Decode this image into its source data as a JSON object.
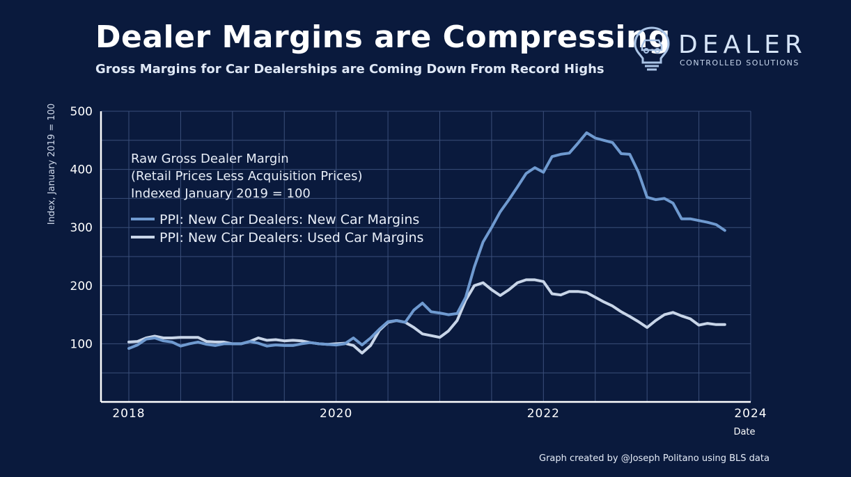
{
  "header": {
    "title": "Dealer Margins are Compressing",
    "subtitle": "Gross Margins for Car Dealerships are Coming Down From Record Highs"
  },
  "brand": {
    "name": "DEALER",
    "tagline": "CONTROLLED SOLUTIONS",
    "icon": "lightbulb-car-icon",
    "color": "#aac4e6"
  },
  "footer": {
    "credit": "Graph created by @Joseph Politano using BLS data"
  },
  "chart_data": {
    "type": "line",
    "xlabel": "Date",
    "ylabel": "Index, January 2019 = 100",
    "xlim": [
      2018,
      2024
    ],
    "ylim": [
      0,
      500
    ],
    "x_ticks": [
      "2018",
      "2020",
      "2022",
      "2024"
    ],
    "y_ticks": [
      100,
      200,
      300,
      400,
      500
    ],
    "grid": true,
    "legend_position": "top-left",
    "annotation": [
      "Raw Gross Dealer Margin",
      "(Retail Prices Less Acquisition Prices)",
      "Indexed January 2019 = 100"
    ],
    "x": [
      2018.0,
      2018.083,
      2018.167,
      2018.25,
      2018.333,
      2018.417,
      2018.5,
      2018.583,
      2018.667,
      2018.75,
      2018.833,
      2018.917,
      2019.0,
      2019.083,
      2019.167,
      2019.25,
      2019.333,
      2019.417,
      2019.5,
      2019.583,
      2019.667,
      2019.75,
      2019.833,
      2019.917,
      2020.0,
      2020.083,
      2020.167,
      2020.25,
      2020.333,
      2020.417,
      2020.5,
      2020.583,
      2020.667,
      2020.75,
      2020.833,
      2020.917,
      2021.0,
      2021.083,
      2021.167,
      2021.25,
      2021.333,
      2021.417,
      2021.5,
      2021.583,
      2021.667,
      2021.75,
      2021.833,
      2021.917,
      2022.0,
      2022.083,
      2022.167,
      2022.25,
      2022.333,
      2022.417,
      2022.5,
      2022.583,
      2022.667,
      2022.75,
      2022.833,
      2022.917,
      2023.0,
      2023.083,
      2023.167,
      2023.25,
      2023.333,
      2023.417,
      2023.5,
      2023.583,
      2023.667,
      2023.75
    ],
    "series": [
      {
        "name": "PPI: New Car Dealers: New Car Margins",
        "color": "#6f9ad0",
        "values": [
          92,
          98,
          108,
          110,
          105,
          103,
          96,
          100,
          103,
          99,
          97,
          100,
          100,
          100,
          104,
          101,
          96,
          98,
          97,
          97,
          100,
          102,
          100,
          99,
          98,
          100,
          110,
          98,
          110,
          125,
          138,
          140,
          137,
          158,
          170,
          155,
          153,
          150,
          152,
          180,
          232,
          275,
          300,
          327,
          348,
          370,
          393,
          403,
          395,
          422,
          426,
          428,
          445,
          463,
          454,
          450,
          446,
          427,
          426,
          395,
          352,
          348,
          350,
          342,
          315,
          315,
          312,
          309,
          305,
          295
        ]
      },
      {
        "name": "PPI: New Car Dealers: Used Car Margins",
        "color": "#c8d5e8",
        "values": [
          103,
          104,
          110,
          113,
          110,
          110,
          111,
          111,
          111,
          104,
          103,
          103,
          100,
          100,
          104,
          110,
          106,
          107,
          105,
          106,
          105,
          102,
          100,
          99,
          100,
          101,
          97,
          84,
          97,
          123,
          137,
          140,
          137,
          128,
          117,
          114,
          111,
          122,
          140,
          175,
          200,
          205,
          193,
          183,
          193,
          205,
          210,
          210,
          207,
          186,
          184,
          190,
          190,
          188,
          180,
          172,
          165,
          155,
          147,
          138,
          128,
          140,
          150,
          154,
          148,
          143,
          132,
          135,
          133,
          133
        ]
      }
    ]
  }
}
